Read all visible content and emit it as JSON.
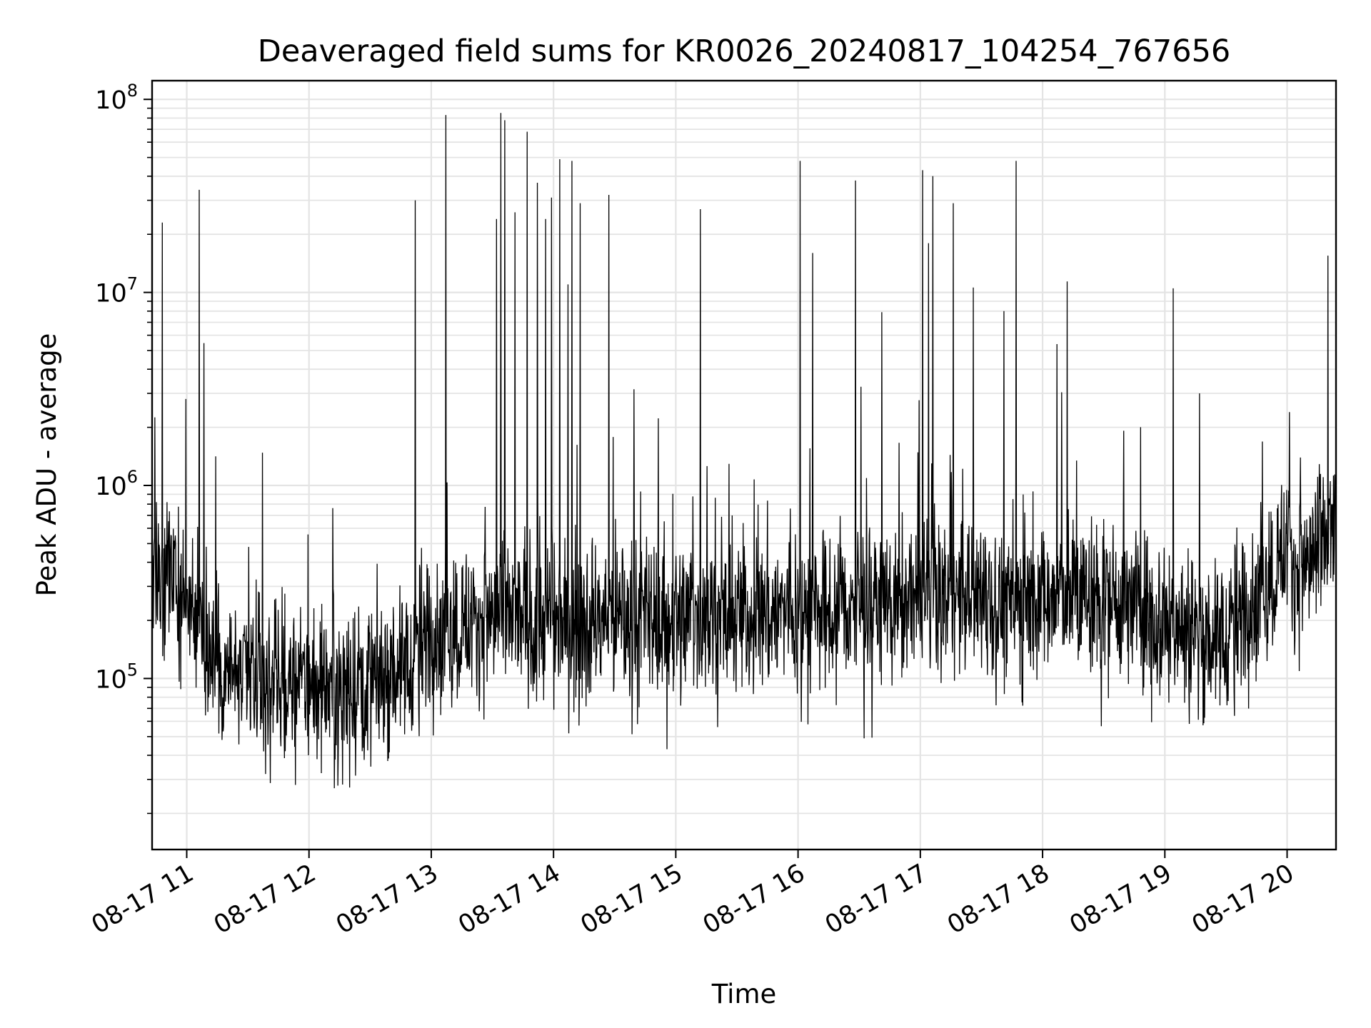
{
  "chart_data": {
    "type": "line",
    "title": "Deaveraged field sums for KR0026_20240817_104254_767656",
    "xlabel": "Time",
    "ylabel": "Peak ADU - average",
    "xlim": [
      "2024-08-17 10:43",
      "2024-08-17 20:24"
    ],
    "ylim": [
      13000,
      125000000
    ],
    "yscale": "log",
    "grid": true,
    "line_color": "#000000",
    "x_ticks": [
      {
        "value": "2024-08-17 11:00",
        "label": "08-17 11"
      },
      {
        "value": "2024-08-17 12:00",
        "label": "08-17 12"
      },
      {
        "value": "2024-08-17 13:00",
        "label": "08-17 13"
      },
      {
        "value": "2024-08-17 14:00",
        "label": "08-17 14"
      },
      {
        "value": "2024-08-17 15:00",
        "label": "08-17 15"
      },
      {
        "value": "2024-08-17 16:00",
        "label": "08-17 16"
      },
      {
        "value": "2024-08-17 17:00",
        "label": "08-17 17"
      },
      {
        "value": "2024-08-17 18:00",
        "label": "08-17 18"
      },
      {
        "value": "2024-08-17 19:00",
        "label": "08-17 19"
      },
      {
        "value": "2024-08-17 20:00",
        "label": "08-17 20"
      }
    ],
    "y_ticks": [
      {
        "value": 100000,
        "base": "10",
        "exp": "5"
      },
      {
        "value": 1000000,
        "base": "10",
        "exp": "6"
      },
      {
        "value": 10000000,
        "base": "10",
        "exp": "7"
      },
      {
        "value": 100000000,
        "base": "10",
        "exp": "8"
      }
    ],
    "x": [
      "2024-08-17 10:43",
      "2024-08-17 10:47",
      "2024-08-17 10:51",
      "2024-08-17 10:55",
      "2024-08-17 11:00",
      "2024-08-17 11:05",
      "2024-08-17 11:10",
      "2024-08-17 11:15",
      "2024-08-17 11:20",
      "2024-08-17 11:30",
      "2024-08-17 11:40",
      "2024-08-17 11:50",
      "2024-08-17 12:00",
      "2024-08-17 12:10",
      "2024-08-17 12:20",
      "2024-08-17 12:30",
      "2024-08-17 12:40",
      "2024-08-17 12:48",
      "2024-08-17 12:53",
      "2024-08-17 12:58",
      "2024-08-17 13:05",
      "2024-08-17 13:15",
      "2024-08-17 13:25",
      "2024-08-17 13:32",
      "2024-08-17 13:40",
      "2024-08-17 13:50",
      "2024-08-17 14:00",
      "2024-08-17 14:10",
      "2024-08-17 14:20",
      "2024-08-17 14:30",
      "2024-08-17 14:45",
      "2024-08-17 15:00",
      "2024-08-17 15:15",
      "2024-08-17 15:30",
      "2024-08-17 15:45",
      "2024-08-17 16:00",
      "2024-08-17 16:15",
      "2024-08-17 16:30",
      "2024-08-17 16:45",
      "2024-08-17 17:00",
      "2024-08-17 17:15",
      "2024-08-17 17:30",
      "2024-08-17 17:45",
      "2024-08-17 18:00",
      "2024-08-17 18:15",
      "2024-08-17 18:30",
      "2024-08-17 18:45",
      "2024-08-17 18:55",
      "2024-08-17 19:05",
      "2024-08-17 19:15",
      "2024-08-17 19:25",
      "2024-08-17 19:35",
      "2024-08-17 19:45",
      "2024-08-17 19:55",
      "2024-08-17 20:00",
      "2024-08-17 20:05",
      "2024-08-17 20:15",
      "2024-08-17 20:24"
    ],
    "y": [
      500000,
      300000,
      400000,
      350000,
      250000,
      220000,
      180000,
      130000,
      110000,
      100000,
      95000,
      90000,
      95000,
      100000,
      95000,
      100000,
      110000,
      120000,
      150000,
      170000,
      180000,
      190000,
      200000,
      210000,
      210000,
      200000,
      200000,
      190000,
      190000,
      210000,
      200000,
      210000,
      220000,
      210000,
      220000,
      230000,
      220000,
      240000,
      240000,
      250000,
      270000,
      260000,
      240000,
      260000,
      270000,
      260000,
      250000,
      210000,
      190000,
      170000,
      160000,
      200000,
      270000,
      380000,
      520000,
      350000,
      450000,
      600000
    ],
    "spikes": [
      {
        "x": "2024-08-17 10:48",
        "y": 23000000
      },
      {
        "x": "2024-08-17 11:06",
        "y": 34000000
      },
      {
        "x": "2024-08-17 12:52",
        "y": 30000000
      },
      {
        "x": "2024-08-17 13:07",
        "y": 83000000
      },
      {
        "x": "2024-08-17 13:32",
        "y": 24000000
      },
      {
        "x": "2024-08-17 13:34",
        "y": 85000000
      },
      {
        "x": "2024-08-17 13:36",
        "y": 78000000
      },
      {
        "x": "2024-08-17 13:41",
        "y": 26000000
      },
      {
        "x": "2024-08-17 13:47",
        "y": 68000000
      },
      {
        "x": "2024-08-17 13:52",
        "y": 37000000
      },
      {
        "x": "2024-08-17 13:56",
        "y": 24000000
      },
      {
        "x": "2024-08-17 13:59",
        "y": 31000000
      },
      {
        "x": "2024-08-17 14:03",
        "y": 49000000
      },
      {
        "x": "2024-08-17 14:07",
        "y": 11000000
      },
      {
        "x": "2024-08-17 14:09",
        "y": 48000000
      },
      {
        "x": "2024-08-17 14:13",
        "y": 29000000
      },
      {
        "x": "2024-08-17 14:27",
        "y": 32000000
      },
      {
        "x": "2024-08-17 15:12",
        "y": 27000000
      },
      {
        "x": "2024-08-17 16:01",
        "y": 48000000
      },
      {
        "x": "2024-08-17 16:07",
        "y": 16000000
      },
      {
        "x": "2024-08-17 16:28",
        "y": 38000000
      },
      {
        "x": "2024-08-17 16:41",
        "y": 7900000
      },
      {
        "x": "2024-08-17 17:01",
        "y": 43000000
      },
      {
        "x": "2024-08-17 17:04",
        "y": 18000000
      },
      {
        "x": "2024-08-17 17:06",
        "y": 40000000
      },
      {
        "x": "2024-08-17 17:16",
        "y": 29000000
      },
      {
        "x": "2024-08-17 17:26",
        "y": 10600000
      },
      {
        "x": "2024-08-17 17:41",
        "y": 8000000
      },
      {
        "x": "2024-08-17 17:47",
        "y": 48000000
      },
      {
        "x": "2024-08-17 18:07",
        "y": 5400000
      },
      {
        "x": "2024-08-17 18:12",
        "y": 11400000
      },
      {
        "x": "2024-08-17 19:04",
        "y": 10500000
      },
      {
        "x": "2024-08-17 19:17",
        "y": 3000000
      },
      {
        "x": "2024-08-17 20:01",
        "y": 2400000
      },
      {
        "x": "2024-08-17 20:20",
        "y": 15500000
      }
    ]
  }
}
